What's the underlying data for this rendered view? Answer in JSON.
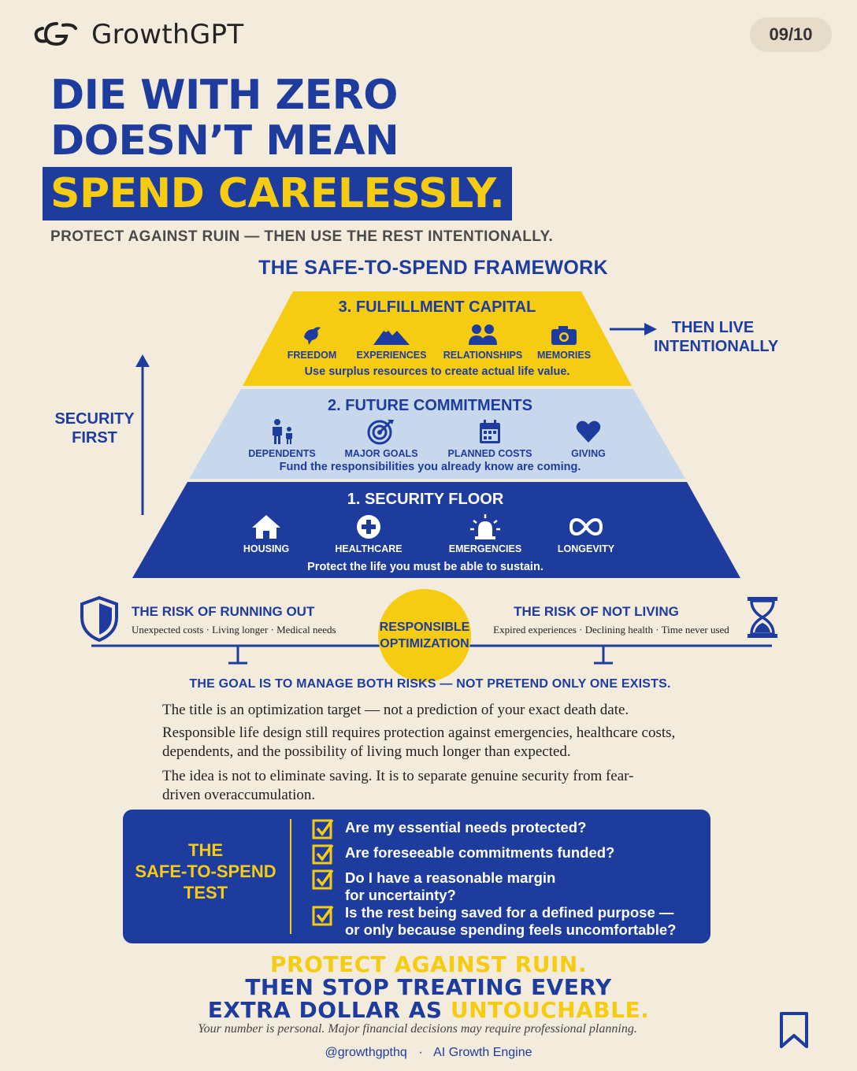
{
  "brand": {
    "name": "GrowthGPT",
    "logo_icon": "growthgpt-logo-icon"
  },
  "page_indicator": "09/10",
  "title": {
    "line1": "DIE WITH ZERO",
    "line2": "DOESN’T MEAN",
    "highlight": "SPEND CARELESSLY."
  },
  "subtitle": "PROTECT AGAINST RUIN — THEN USE THE REST INTENTIONALLY.",
  "framework": {
    "title": "THE SAFE-TO-SPEND FRAMEWORK",
    "side_left": [
      "SECURITY",
      "FIRST"
    ],
    "side_right": [
      "THEN LIVE",
      "INTENTIONALLY"
    ],
    "tiers": [
      {
        "title": "3. FULFILLMENT CAPITAL",
        "items": [
          {
            "label": "FREEDOM",
            "icon": "bird-icon"
          },
          {
            "label": "EXPERIENCES",
            "icon": "mountain-icon"
          },
          {
            "label": "RELATIONSHIPS",
            "icon": "people-icon"
          },
          {
            "label": "MEMORIES",
            "icon": "camera-icon"
          }
        ],
        "description": "Use surplus resources to create actual life value."
      },
      {
        "title": "2. FUTURE COMMITMENTS",
        "items": [
          {
            "label": "DEPENDENTS",
            "icon": "parent-child-icon"
          },
          {
            "label": "MAJOR GOALS",
            "icon": "target-icon"
          },
          {
            "label": "PLANNED COSTS",
            "icon": "calendar-icon"
          },
          {
            "label": "GIVING",
            "icon": "heart-icon"
          }
        ],
        "description": "Fund the responsibilities you already know are coming."
      },
      {
        "title": "1. SECURITY FLOOR",
        "items": [
          {
            "label": "HOUSING",
            "icon": "house-icon"
          },
          {
            "label": "HEALTHCARE",
            "icon": "medical-cross-icon"
          },
          {
            "label": "EMERGENCIES",
            "icon": "siren-icon"
          },
          {
            "label": "LONGEVITY",
            "icon": "infinity-icon"
          }
        ],
        "description": "Protect the life you must be able to sustain."
      }
    ]
  },
  "risks": {
    "left": {
      "title": "THE RISK OF RUNNING OUT",
      "subtitle": "Unexpected costs · Living longer · Medical needs",
      "icon": "shield-icon"
    },
    "center": [
      "RESPONSIBLE",
      "OPTIMIZATION"
    ],
    "right": {
      "title": "THE RISK OF NOT LIVING",
      "subtitle": "Expired experiences · Declining health · Time never used",
      "icon": "hourglass-icon"
    },
    "goal": "THE GOAL IS TO MANAGE BOTH RISKS — NOT PRETEND ONLY ONE EXISTS."
  },
  "body": [
    "The title is an optimization target — not a prediction of your exact death date.",
    "Responsible life design still requires protection against emergencies, healthcare costs, dependents, and the possibility of living much longer than expected.",
    "The idea is not to eliminate saving. It is to separate genuine security from fear-driven overaccumulation."
  ],
  "test": {
    "title": [
      "THE",
      "SAFE-TO-SPEND",
      "TEST"
    ],
    "questions": [
      "Are my essential needs protected?",
      "Are foreseeable commitments funded?",
      "Do I have a reasonable margin for uncertainty?",
      "Is the rest being saved for a defined purpose — or only because spending feels uncomfortable?"
    ]
  },
  "closing": {
    "line1": "PROTECT AGAINST RUIN.",
    "line2": "THEN STOP TREATING EVERY",
    "line3_prefix": "EXTRA DOLLAR AS ",
    "line3_highlight": "UNTOUCHABLE."
  },
  "disclaimer": "Your number is personal. Major financial decisions may require professional planning.",
  "footer": {
    "handle": "@growthgpthq",
    "separator": "·",
    "tagline": "AI Growth Engine"
  },
  "colors": {
    "navy": "#1e3c9e",
    "yellow": "#f6cc12",
    "light_blue": "#c7d8ec",
    "background": "#f3ecdc"
  }
}
